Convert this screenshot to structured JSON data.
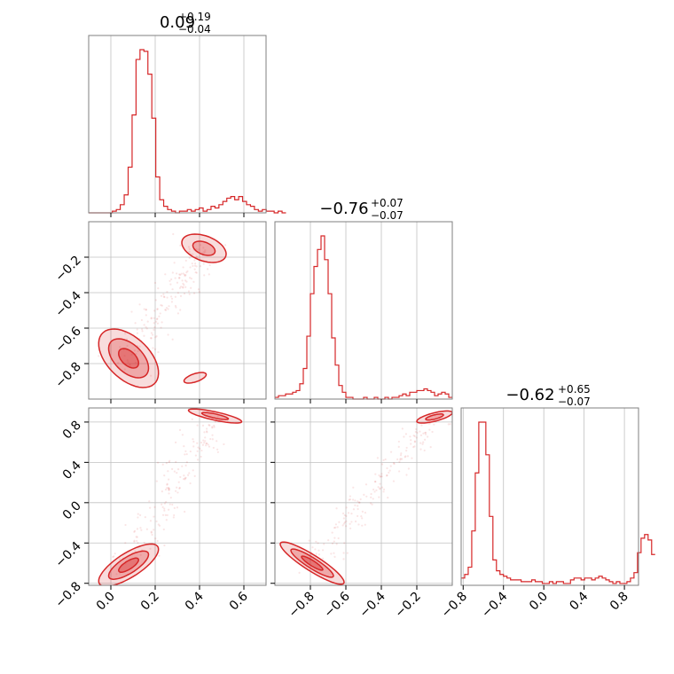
{
  "chart_data": {
    "type": "corner",
    "color": "#d62728",
    "axes_ranges": {
      "p0": [
        -0.1,
        0.7
      ],
      "p1": [
        -1.0,
        0.0
      ],
      "p2": [
        -0.82,
        0.94
      ]
    },
    "titles": [
      {
        "median": "0.09",
        "plus": "+0.19",
        "minus": "−0.04"
      },
      {
        "median": "−0.76",
        "plus": "+0.07",
        "minus": "−0.07"
      },
      {
        "median": "−0.62",
        "plus": "+0.65",
        "minus": "−0.07"
      }
    ],
    "ticks": {
      "p0": {
        "values": [
          0.0,
          0.2,
          0.4,
          0.6
        ],
        "labels": [
          "0.0",
          "0.2",
          "0.4",
          "0.6"
        ]
      },
      "p1": {
        "values": [
          -0.8,
          -0.6,
          -0.4,
          -0.2
        ],
        "labels": [
          "−0.8",
          "−0.6",
          "−0.4",
          "−0.2"
        ]
      },
      "p2": {
        "values": [
          -0.8,
          -0.4,
          0.0,
          0.4,
          0.8
        ],
        "labels": [
          "−0.8",
          "−0.4",
          "0.0",
          "0.4",
          "0.8"
        ]
      }
    },
    "histograms": [
      {
        "name": "p0",
        "x_start": -0.1,
        "bin_width": 0.0178,
        "counts": [
          0,
          0,
          0,
          0,
          0,
          0,
          1,
          2,
          5,
          11,
          28,
          60,
          94,
          100,
          99,
          85,
          58,
          22,
          8,
          4,
          2,
          1,
          0,
          1,
          1,
          2,
          1,
          2,
          3,
          1,
          2,
          4,
          3,
          5,
          7,
          9,
          10,
          8,
          10,
          7,
          5,
          4,
          2,
          1,
          2,
          1,
          1,
          0,
          1,
          0
        ]
      },
      {
        "name": "p1",
        "x_start": -1.0,
        "bin_width": 0.02,
        "counts": [
          1,
          2,
          2,
          3,
          3,
          4,
          5,
          9,
          18,
          37,
          62,
          78,
          88,
          96,
          82,
          62,
          36,
          20,
          8,
          4,
          1,
          1,
          0,
          0,
          0,
          1,
          0,
          0,
          1,
          0,
          0,
          1,
          0,
          1,
          1,
          2,
          3,
          2,
          4,
          4,
          5,
          5,
          6,
          5,
          4,
          2,
          3,
          4,
          3,
          1
        ]
      },
      {
        "name": "p2",
        "x_start": -0.82,
        "bin_width": 0.035,
        "counts": [
          4,
          6,
          10,
          30,
          62,
          90,
          90,
          72,
          38,
          14,
          8,
          6,
          5,
          4,
          3,
          3,
          3,
          2,
          2,
          2,
          3,
          2,
          2,
          1,
          1,
          2,
          1,
          2,
          2,
          1,
          1,
          3,
          4,
          4,
          3,
          4,
          4,
          3,
          4,
          5,
          4,
          3,
          2,
          1,
          2,
          1,
          1,
          2,
          4,
          7,
          18,
          26,
          28,
          25,
          17
        ]
      }
    ],
    "pairs": [
      {
        "x": "p0",
        "y": "p1",
        "modes": [
          {
            "center": [
              0.08,
              -0.77
            ],
            "sigma": [
              0.045,
              0.055
            ],
            "rho": -0.5,
            "levels": [
              1.0,
              2.0,
              3.0
            ]
          },
          {
            "center": [
              0.42,
              -0.15
            ],
            "sigma": [
              0.05,
              0.04
            ],
            "rho": -0.4,
            "levels": [
              1.0,
              2.0
            ]
          },
          {
            "center": [
              0.38,
              -0.88
            ],
            "sigma": [
              0.05,
              0.03
            ],
            "rho": 0.6,
            "levels": [
              1.0
            ]
          }
        ]
      },
      {
        "x": "p0",
        "y": "p2",
        "modes": [
          {
            "center": [
              0.08,
              -0.62
            ],
            "sigma": [
              0.045,
              0.07
            ],
            "rho": 0.75,
            "levels": [
              1.0,
              2.0,
              3.0
            ]
          },
          {
            "center": [
              0.47,
              0.86
            ],
            "sigma": [
              0.06,
              0.035
            ],
            "rho": -0.8,
            "levels": [
              1.0,
              2.0
            ]
          }
        ]
      },
      {
        "x": "p1",
        "y": "p2",
        "modes": [
          {
            "center": [
              -0.79,
              -0.6
            ],
            "sigma": [
              0.06,
              0.07
            ],
            "rho": -0.9,
            "levels": [
              1.0,
              2.0,
              3.0
            ]
          },
          {
            "center": [
              -0.1,
              0.85
            ],
            "sigma": [
              0.05,
              0.03
            ],
            "rho": 0.7,
            "levels": [
              1.0,
              2.0
            ]
          }
        ]
      }
    ]
  }
}
